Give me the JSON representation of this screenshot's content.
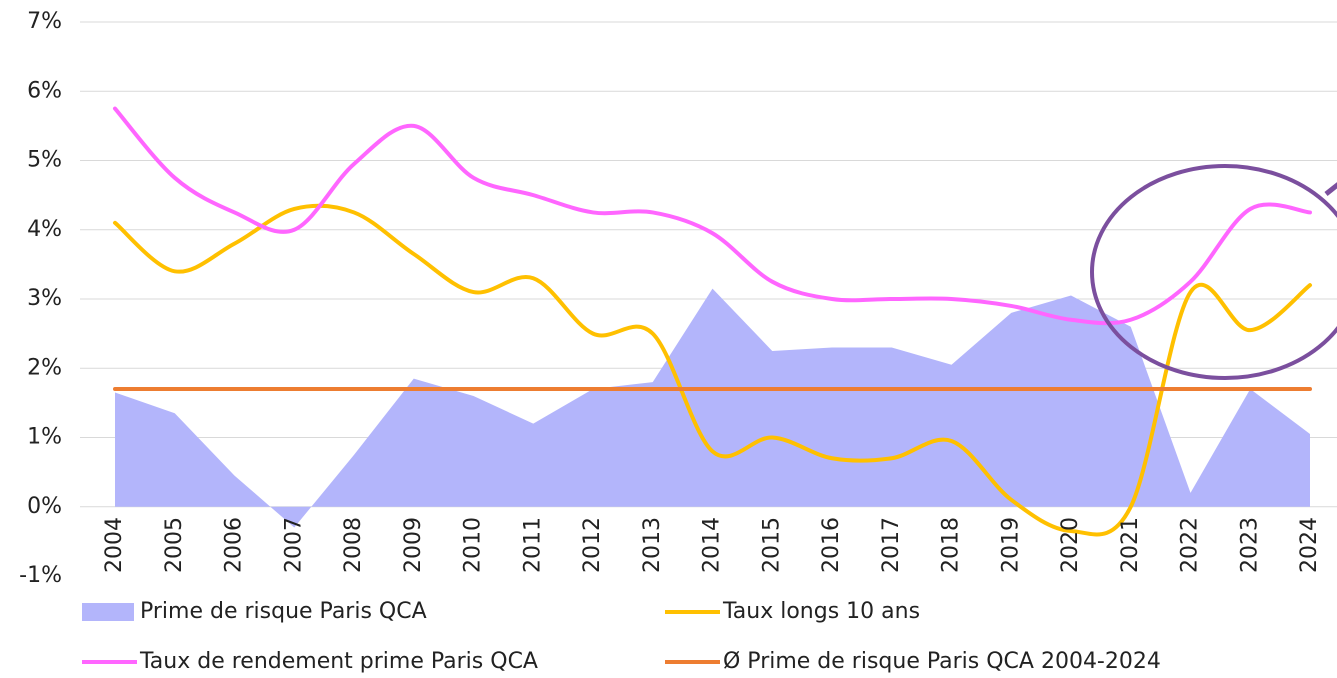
{
  "chart_data": {
    "type": "line",
    "categories": [
      "2004",
      "2005",
      "2006",
      "2007",
      "2008",
      "2009",
      "2010",
      "2011",
      "2012",
      "2013",
      "2014",
      "2015",
      "2016",
      "2017",
      "2018",
      "2019",
      "2020",
      "2021",
      "2022",
      "2023",
      "2024"
    ],
    "series": [
      {
        "name": "Prime de risque Paris QCA",
        "kind": "area",
        "color": "#b3b5fb",
        "values": [
          1.65,
          1.35,
          0.45,
          -0.3,
          0.75,
          1.85,
          1.6,
          1.2,
          1.7,
          1.8,
          3.15,
          2.25,
          2.3,
          2.3,
          2.05,
          2.8,
          3.05,
          2.6,
          0.2,
          1.7,
          1.05
        ]
      },
      {
        "name": "Taux longs 10 ans",
        "kind": "line",
        "color": "#ffc000",
        "values": [
          4.1,
          3.4,
          3.8,
          4.3,
          4.25,
          3.65,
          3.1,
          3.3,
          2.5,
          2.5,
          0.8,
          1.0,
          0.7,
          0.7,
          0.95,
          0.1,
          -0.35,
          0.0,
          3.1,
          2.55,
          3.2
        ]
      },
      {
        "name": "Taux de rendement prime Paris QCA",
        "kind": "line",
        "color": "#ff66ff",
        "values": [
          5.75,
          4.75,
          4.25,
          4.0,
          4.95,
          5.5,
          4.75,
          4.5,
          4.25,
          4.25,
          3.95,
          3.25,
          3.0,
          3.0,
          3.0,
          2.9,
          2.7,
          2.7,
          3.25,
          4.3,
          4.25
        ]
      },
      {
        "name": "Ø Prime de risque Paris QCA 2004-2024",
        "kind": "line",
        "color": "#ed7d31",
        "values": [
          1.7,
          1.7,
          1.7,
          1.7,
          1.7,
          1.7,
          1.7,
          1.7,
          1.7,
          1.7,
          1.7,
          1.7,
          1.7,
          1.7,
          1.7,
          1.7,
          1.7,
          1.7,
          1.7,
          1.7,
          1.7
        ]
      }
    ],
    "ylim": [
      -1,
      7
    ],
    "yticks": [
      {
        "value": -1,
        "label": "-1%"
      },
      {
        "value": 0,
        "label": "0%"
      },
      {
        "value": 1,
        "label": "1%"
      },
      {
        "value": 2,
        "label": "2%"
      },
      {
        "value": 3,
        "label": "3%"
      },
      {
        "value": 4,
        "label": "4%"
      },
      {
        "value": 5,
        "label": "5%"
      },
      {
        "value": 6,
        "label": "6%"
      },
      {
        "value": 7,
        "label": "7%"
      }
    ],
    "grid": true
  }
}
